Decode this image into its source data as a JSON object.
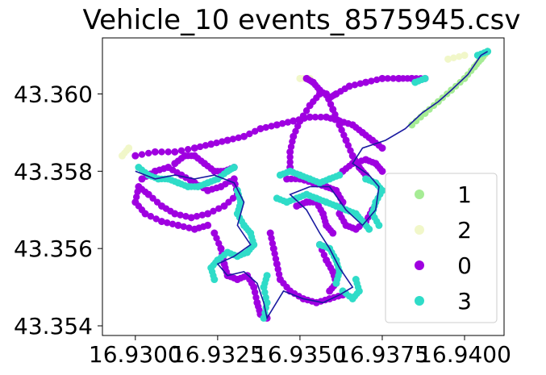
{
  "chart_data": {
    "type": "scatter",
    "title": "Vehicle_10 events_8575945.csv",
    "xlabel": "",
    "ylabel": "",
    "xlim": [
      16.929,
      16.9412
    ],
    "ylim": [
      43.35375,
      43.36145
    ],
    "x_ticks": [
      16.93,
      16.9325,
      16.935,
      16.9375,
      16.94
    ],
    "x_tick_labels": [
      "16.9300",
      "16.9325",
      "16.9350",
      "16.9375",
      "16.9400"
    ],
    "y_ticks": [
      43.354,
      43.356,
      43.358,
      43.36
    ],
    "y_tick_labels": [
      "43.354",
      "43.356",
      "43.358",
      "43.360"
    ],
    "grid": false,
    "legend_position": "lower-right",
    "route_color": "#1a1aa0",
    "series": [
      {
        "name": "1",
        "color": "#a6ec95",
        "segments": [
          [
            [
              16.9384,
              43.3592
            ],
            [
              16.9388,
              43.3595
            ],
            [
              16.9392,
              43.3598
            ],
            [
              16.9396,
              43.3601
            ],
            [
              16.94,
              43.3604
            ],
            [
              16.9403,
              43.3607
            ],
            [
              16.9405,
              43.3609
            ],
            [
              16.9407,
              43.3611
            ]
          ]
        ]
      },
      {
        "name": "2",
        "color": "#f1f7c9",
        "segments": [
          [
            [
              16.9296,
              43.3584
            ],
            [
              16.9298,
              43.3586
            ]
          ],
          [
            [
              16.935,
              43.3604
            ],
            [
              16.9353,
              43.3604
            ]
          ],
          [
            [
              16.9395,
              43.3609
            ],
            [
              16.94,
              43.361
            ]
          ]
        ]
      },
      {
        "name": "0",
        "color": "#9f00e0",
        "segments": [
          [
            [
              16.93,
              43.3584
            ],
            [
              16.9306,
              43.3585
            ],
            [
              16.9312,
              43.3585
            ],
            [
              16.9318,
              43.3586
            ],
            [
              16.9323,
              43.3587
            ],
            [
              16.9328,
              43.3588
            ],
            [
              16.9333,
              43.3589
            ],
            [
              16.9338,
              43.3591
            ],
            [
              16.9343,
              43.3592
            ],
            [
              16.9348,
              43.3593
            ],
            [
              16.9353,
              43.3594
            ],
            [
              16.9358,
              43.3594
            ],
            [
              16.9362,
              43.3593
            ],
            [
              16.9366,
              43.3592
            ],
            [
              16.9369,
              43.359
            ],
            [
              16.9372,
              43.3588
            ],
            [
              16.9375,
              43.3586
            ]
          ],
          [
            [
              16.9356,
              43.36
            ],
            [
              16.9353,
              43.3597
            ],
            [
              16.935,
              43.3593
            ],
            [
              16.9348,
              43.3589
            ],
            [
              16.9347,
              43.3585
            ],
            [
              16.9347,
              43.3581
            ]
          ],
          [
            [
              16.9358,
              43.36
            ],
            [
              16.936,
              43.3596
            ],
            [
              16.9362,
              43.3592
            ],
            [
              16.9364,
              43.3588
            ],
            [
              16.9366,
              43.3584
            ],
            [
              16.9368,
              43.3581
            ],
            [
              16.937,
              43.3579
            ]
          ],
          [
            [
              16.9352,
              43.3604
            ],
            [
              16.9354,
              43.3603
            ],
            [
              16.9356,
              43.3601
            ],
            [
              16.9359,
              43.3599
            ],
            [
              16.9361,
              43.36
            ],
            [
              16.9365,
              43.3602
            ],
            [
              16.937,
              43.3603
            ],
            [
              16.9375,
              43.3604
            ],
            [
              16.938,
              43.3604
            ],
            [
              16.9384,
              43.3604
            ],
            [
              16.9388,
              43.3604
            ]
          ],
          [
            [
              16.9363,
              43.358
            ],
            [
              16.9366,
              43.3582
            ],
            [
              16.937,
              43.3583
            ],
            [
              16.9373,
              43.3582
            ],
            [
              16.9375,
              43.358
            ]
          ],
          [
            [
              16.9302,
              43.3578
            ],
            [
              16.9306,
              43.358
            ],
            [
              16.931,
              43.3581
            ],
            [
              16.9314,
              43.3579
            ],
            [
              16.9318,
              43.3577
            ],
            [
              16.9322,
              43.3575
            ],
            [
              16.9326,
              43.3576
            ],
            [
              16.933,
              43.3578
            ],
            [
              16.9331,
              43.3574
            ],
            [
              16.9327,
              43.3571
            ],
            [
              16.9322,
              43.3569
            ],
            [
              16.9317,
              43.3568
            ],
            [
              16.9312,
              43.3569
            ],
            [
              16.9308,
              43.3571
            ],
            [
              16.9304,
              43.3574
            ],
            [
              16.9301,
              43.3576
            ],
            [
              16.93,
              43.3572
            ],
            [
              16.9303,
              43.3569
            ],
            [
              16.9308,
              43.3567
            ],
            [
              16.9313,
              43.3566
            ],
            [
              16.9318,
              43.3565
            ],
            [
              16.9322,
              43.3566
            ]
          ],
          [
            [
              16.9312,
              43.3582
            ],
            [
              16.9315,
              43.3584
            ],
            [
              16.9318,
              43.3584
            ],
            [
              16.9321,
              43.3582
            ],
            [
              16.9324,
              43.358
            ],
            [
              16.9327,
              43.358
            ],
            [
              16.933,
              43.3581
            ]
          ],
          [
            [
              16.9324,
              43.3564
            ],
            [
              16.9326,
              43.356
            ],
            [
              16.9327,
              43.3556
            ],
            [
              16.9328,
              43.3553
            ],
            [
              16.9331,
              43.3552
            ],
            [
              16.9334,
              43.3553
            ],
            [
              16.9336,
              43.355
            ],
            [
              16.9337,
              43.3546
            ],
            [
              16.9338,
              43.3543
            ],
            [
              16.934,
              43.3542
            ]
          ],
          [
            [
              16.9341,
              43.3564
            ],
            [
              16.9342,
              43.356
            ],
            [
              16.9343,
              43.3556
            ],
            [
              16.9344,
              43.3552
            ],
            [
              16.9347,
              43.3549
            ],
            [
              16.9351,
              43.3547
            ],
            [
              16.9355,
              43.3546
            ],
            [
              16.9359,
              43.3547
            ],
            [
              16.9363,
              43.3548
            ]
          ],
          [
            [
              16.9356,
              43.3561
            ],
            [
              16.9358,
              43.3557
            ],
            [
              16.936,
              43.3554
            ],
            [
              16.9361,
              43.3551
            ],
            [
              16.9359,
              43.3549
            ]
          ],
          [
            [
              16.9346,
              43.3578
            ],
            [
              16.935,
              43.3578
            ],
            [
              16.9354,
              43.3577
            ],
            [
              16.9358,
              43.3576
            ],
            [
              16.9361,
              43.3575
            ],
            [
              16.9363,
              43.3572
            ],
            [
              16.9362,
              43.3569
            ],
            [
              16.9364,
              43.3566
            ],
            [
              16.9367,
              43.3565
            ],
            [
              16.937,
              43.3567
            ],
            [
              16.9372,
              43.357
            ]
          ],
          [
            [
              16.9349,
              43.3571
            ],
            [
              16.9352,
              43.3572
            ],
            [
              16.9355,
              43.3572
            ],
            [
              16.9357,
              43.3569
            ],
            [
              16.9358,
              43.3566
            ],
            [
              16.936,
              43.3564
            ]
          ]
        ]
      },
      {
        "name": "3",
        "color": "#2fdcc8",
        "segments": [
          [
            [
              16.9301,
              43.3581
            ],
            [
              16.9304,
              43.3579
            ],
            [
              16.9307,
              43.3578
            ],
            [
              16.931,
              43.3578
            ],
            [
              16.9313,
              43.3577
            ],
            [
              16.9316,
              43.3576
            ],
            [
              16.9319,
              43.3576
            ],
            [
              16.9322,
              43.3577
            ],
            [
              16.9325,
              43.3578
            ],
            [
              16.9328,
              43.358
            ],
            [
              16.933,
              43.3581
            ]
          ],
          [
            [
              16.9331,
              43.3575
            ],
            [
              16.9332,
              43.3572
            ],
            [
              16.9331,
              43.3569
            ],
            [
              16.9333,
              43.3566
            ],
            [
              16.9335,
              43.3564
            ],
            [
              16.9336,
              43.3561
            ],
            [
              16.9334,
              43.3559
            ],
            [
              16.9331,
              43.3558
            ],
            [
              16.9328,
              43.3559
            ],
            [
              16.9325,
              43.3557
            ],
            [
              16.9323,
              43.3555
            ],
            [
              16.9324,
              43.3552
            ]
          ],
          [
            [
              16.9339,
              43.3542
            ],
            [
              16.934,
              43.3546
            ],
            [
              16.9339,
              43.355
            ],
            [
              16.934,
              43.3553
            ]
          ],
          [
            [
              16.9344,
              43.3579
            ],
            [
              16.9347,
              43.358
            ],
            [
              16.935,
              43.3579
            ],
            [
              16.9353,
              43.3578
            ],
            [
              16.9356,
              43.3577
            ],
            [
              16.9359,
              43.3578
            ],
            [
              16.9362,
              43.3579
            ]
          ],
          [
            [
              16.9343,
              43.3573
            ],
            [
              16.9346,
              43.3572
            ],
            [
              16.9349,
              43.3573
            ],
            [
              16.9352,
              43.3574
            ],
            [
              16.9355,
              43.3573
            ],
            [
              16.9358,
              43.3572
            ],
            [
              16.9361,
              43.3571
            ],
            [
              16.9364,
              43.357
            ],
            [
              16.9367,
              43.3569
            ],
            [
              16.9369,
              43.3567
            ],
            [
              16.9371,
              43.3565
            ]
          ],
          [
            [
              16.9356,
              43.3561
            ],
            [
              16.9359,
              43.356
            ],
            [
              16.9361,
              43.3557
            ],
            [
              16.9362,
              43.3554
            ],
            [
              16.9361,
              43.3551
            ]
          ],
          [
            [
              16.9363,
              43.3549
            ],
            [
              16.9366,
              43.3547
            ],
            [
              16.9368,
              43.3549
            ],
            [
              16.9367,
              43.3552
            ]
          ],
          [
            [
              16.937,
              43.3578
            ],
            [
              16.9373,
              43.3577
            ],
            [
              16.9375,
              43.3575
            ],
            [
              16.9373,
              43.3572
            ],
            [
              16.9372,
              43.3569
            ],
            [
              16.9374,
              43.3566
            ]
          ],
          [
            [
              16.9385,
              43.3603
            ],
            [
              16.9388,
              43.3604
            ]
          ],
          [
            [
              16.9404,
              43.361
            ],
            [
              16.9407,
              43.3611
            ]
          ]
        ]
      }
    ],
    "route": [
      [
        16.93,
        43.358
      ],
      [
        16.9306,
        43.3578
      ],
      [
        16.9312,
        43.3579
      ],
      [
        16.9318,
        43.3578
      ],
      [
        16.9324,
        43.3579
      ],
      [
        16.933,
        43.3577
      ],
      [
        16.9333,
        43.3572
      ],
      [
        16.9331,
        43.3566
      ],
      [
        16.9335,
        43.3561
      ],
      [
        16.933,
        43.3558
      ],
      [
        16.9325,
        43.3556
      ],
      [
        16.9328,
        43.3553
      ],
      [
        16.9333,
        43.3554
      ],
      [
        16.9337,
        43.3551
      ],
      [
        16.9339,
        43.3546
      ],
      [
        16.934,
        43.3542
      ],
      [
        16.9345,
        43.3549
      ],
      [
        16.9351,
        43.3547
      ],
      [
        16.9357,
        43.3546
      ],
      [
        16.9362,
        43.3548
      ],
      [
        16.9366,
        43.355
      ],
      [
        16.9362,
        43.3555
      ],
      [
        16.9359,
        43.356
      ],
      [
        16.9356,
        43.3564
      ],
      [
        16.9352,
        43.357
      ],
      [
        16.9347,
        43.3574
      ],
      [
        16.9353,
        43.3576
      ],
      [
        16.9359,
        43.3576
      ],
      [
        16.9364,
        43.357
      ],
      [
        16.9369,
        43.3566
      ],
      [
        16.9373,
        43.357
      ],
      [
        16.9374,
        43.3576
      ],
      [
        16.9371,
        43.3579
      ],
      [
        16.9366,
        43.3582
      ],
      [
        16.9369,
        43.3586
      ],
      [
        16.9376,
        43.3588
      ],
      [
        16.9382,
        43.3591
      ],
      [
        16.9387,
        43.3595
      ],
      [
        16.9392,
        43.3598
      ],
      [
        16.9396,
        43.3601
      ],
      [
        16.9401,
        43.3605
      ],
      [
        16.9405,
        43.361
      ],
      [
        16.9407,
        43.3611
      ]
    ]
  }
}
